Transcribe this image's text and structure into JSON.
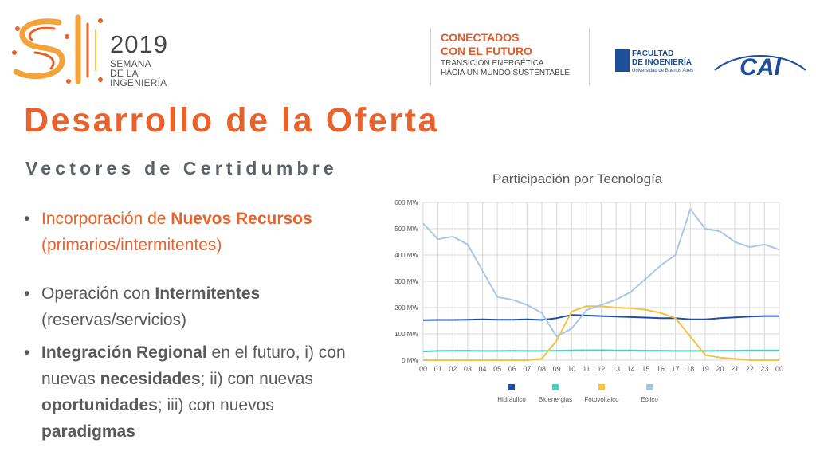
{
  "header": {
    "logo": {
      "mark": "SI",
      "year": "2019",
      "lines": [
        "SEMANA",
        "DE LA",
        "INGENIERÍA"
      ]
    },
    "tagline": {
      "line1": "CONECTADOS",
      "line2": "CON EL FUTURO",
      "line3": "TRANSICIÓN ENERGÉTICA",
      "line4": "HACIA UN MUNDO SUSTENTABLE"
    },
    "faculty": {
      "line1": "FACULTAD",
      "line2": "DE INGENIERÍA",
      "line3": "Universidad de Buenos Aires"
    },
    "cai": "CAI"
  },
  "title": "Desarrollo de la Oferta",
  "subtitle": "Vectores de Certidumbre",
  "bullets": [
    {
      "parts": [
        {
          "text": "Incorporación de ",
          "bold": false
        },
        {
          "text": "Nuevos Recursos",
          "bold": true
        },
        {
          "text": " (primarios/intermitentes)",
          "bold": false
        }
      ]
    },
    {
      "parts": [
        {
          "text": "Operación con ",
          "bold": false
        },
        {
          "text": "Intermitentes",
          "bold": true
        },
        {
          "text": " (reservas/servicios)",
          "bold": false
        }
      ]
    },
    {
      "parts": [
        {
          "text": "Integración Regional",
          "bold": true
        },
        {
          "text": " en el futuro, i) con nuevas ",
          "bold": false
        },
        {
          "text": "necesidades",
          "bold": true
        },
        {
          "text": "; ii) con nuevas ",
          "bold": false
        },
        {
          "text": "oportunidades",
          "bold": true
        },
        {
          "text": "; iii) con nuevos ",
          "bold": false
        },
        {
          "text": "paradigmas",
          "bold": true
        }
      ]
    }
  ],
  "colors": {
    "accent": "#e8622c",
    "text": "#595959",
    "hidraulico": "#1f4ea8",
    "bioenergias": "#46d3c0",
    "fotovoltaico": "#f5c242",
    "eolico": "#a9c7e8"
  },
  "chart_data": {
    "type": "line",
    "title": "Participación por Tecnología",
    "x": [
      0,
      1,
      2,
      3,
      4,
      5,
      6,
      7,
      8,
      9,
      10,
      11,
      12,
      13,
      14,
      15,
      16,
      17,
      18,
      19,
      20,
      21,
      22,
      23,
      24
    ],
    "x_tick_labels": [
      "00",
      "01",
      "02",
      "03",
      "04",
      "05",
      "06",
      "07",
      "08",
      "09",
      "10",
      "11",
      "12",
      "13",
      "14",
      "15",
      "16",
      "17",
      "18",
      "19",
      "20",
      "21",
      "22",
      "23",
      "00"
    ],
    "y_tick_labels": [
      "0 MW",
      "100 MW",
      "200 MW",
      "300 MW",
      "400 MW",
      "500 MW",
      "600 MW"
    ],
    "ylim": [
      0,
      600
    ],
    "grid": true,
    "legend_position": "bottom",
    "series": [
      {
        "name": "Hidráulico",
        "color_key": "hidraulico",
        "values": [
          152,
          153,
          153,
          154,
          155,
          154,
          154,
          155,
          153,
          160,
          172,
          170,
          168,
          166,
          164,
          162,
          160,
          160,
          155,
          155,
          160,
          163,
          166,
          168,
          168
        ]
      },
      {
        "name": "Bioenergias",
        "color_key": "bioenergias",
        "values": [
          33,
          35,
          36,
          36,
          35,
          35,
          36,
          35,
          35,
          36,
          37,
          38,
          38,
          37,
          37,
          36,
          36,
          35,
          35,
          35,
          36,
          36,
          37,
          37,
          37
        ]
      },
      {
        "name": "Fotovoltaico",
        "color_key": "fotovoltaico",
        "values": [
          0,
          0,
          0,
          0,
          0,
          0,
          0,
          0,
          5,
          75,
          185,
          205,
          205,
          200,
          198,
          192,
          180,
          160,
          90,
          20,
          10,
          5,
          0,
          0,
          0
        ]
      },
      {
        "name": "Eólico",
        "color_key": "eolico",
        "values": [
          520,
          460,
          470,
          440,
          340,
          240,
          230,
          210,
          180,
          90,
          120,
          190,
          210,
          230,
          260,
          310,
          360,
          400,
          575,
          500,
          490,
          450,
          430,
          440,
          420
        ]
      }
    ]
  }
}
